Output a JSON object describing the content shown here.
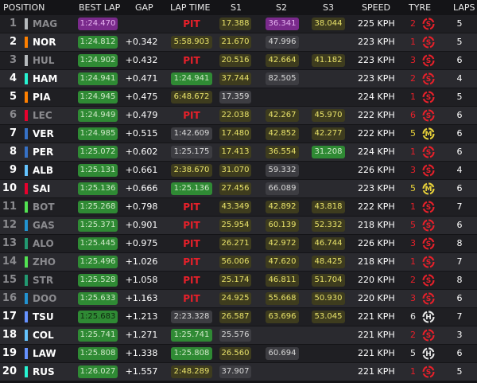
{
  "header": {
    "position": "POSITION",
    "best_lap": "BEST LAP",
    "gap": "GAP",
    "lap_time": "LAP TIME",
    "s1": "S1",
    "s2": "S2",
    "s3": "S3",
    "speed": "SPEED",
    "tyre": "TYRE",
    "laps": "LAPS"
  },
  "colors": {
    "personal_best": "#2f8a34",
    "overall_best": "#7a2a8c",
    "sector_yellow": "#e9e36a",
    "pit_red": "#e8202a",
    "soft": "#e8202a",
    "medium": "#e9d23a",
    "hard": "#e8e8e8"
  },
  "rows": [
    {
      "pos": "1",
      "code": "MAG",
      "team": "#b6babd",
      "out": true,
      "best": "1:24.470",
      "best_style": "purple",
      "gap": "",
      "lt": "PIT",
      "lt_style": "pit",
      "s1": "17.388",
      "s1_style": "yellow",
      "s2": "36.341",
      "s2_style": "purple",
      "s3": "38.044",
      "s3_style": "yellow",
      "speed": "225 KPH",
      "tyre_age": "2",
      "tyre": "S",
      "laps": "5"
    },
    {
      "pos": "2",
      "code": "NOR",
      "team": "#ff8000",
      "out": false,
      "best": "1:24.812",
      "best_style": "green",
      "gap": "+0.342",
      "lt": "5:58.903",
      "lt_style": "yellow",
      "s1": "21.670",
      "s1_style": "yellow",
      "s2": "47.996",
      "s2_style": "white",
      "s3": "",
      "s3_style": "none",
      "speed": "223 KPH",
      "tyre_age": "1",
      "tyre": "S",
      "laps": "5"
    },
    {
      "pos": "3",
      "code": "HUL",
      "team": "#b6babd",
      "out": true,
      "best": "1:24.902",
      "best_style": "green",
      "gap": "+0.432",
      "lt": "PIT",
      "lt_style": "pit",
      "s1": "20.516",
      "s1_style": "yellow",
      "s2": "42.664",
      "s2_style": "yellow",
      "s3": "41.182",
      "s3_style": "yellow",
      "speed": "223 KPH",
      "tyre_age": "3",
      "tyre": "S",
      "laps": "6"
    },
    {
      "pos": "4",
      "code": "HAM",
      "team": "#27f4d2",
      "out": false,
      "best": "1:24.941",
      "best_style": "green",
      "gap": "+0.471",
      "lt": "1:24.941",
      "lt_style": "green",
      "s1": "37.744",
      "s1_style": "yellow",
      "s2": "82.505",
      "s2_style": "white",
      "s3": "",
      "s3_style": "none",
      "speed": "223 KPH",
      "tyre_age": "2",
      "tyre": "S",
      "laps": "4"
    },
    {
      "pos": "5",
      "code": "PIA",
      "team": "#ff8000",
      "out": false,
      "best": "1:24.945",
      "best_style": "green",
      "gap": "+0.475",
      "lt": "6:48.672",
      "lt_style": "yellow",
      "s1": "17.359",
      "s1_style": "white",
      "s2": "",
      "s2_style": "none",
      "s3": "",
      "s3_style": "none",
      "speed": "224 KPH",
      "tyre_age": "1",
      "tyre": "S",
      "laps": "5"
    },
    {
      "pos": "6",
      "code": "LEC",
      "team": "#e8002d",
      "out": true,
      "best": "1:24.949",
      "best_style": "green",
      "gap": "+0.479",
      "lt": "PIT",
      "lt_style": "pit",
      "s1": "22.038",
      "s1_style": "yellow",
      "s2": "42.267",
      "s2_style": "yellow",
      "s3": "45.970",
      "s3_style": "yellow",
      "speed": "222 KPH",
      "tyre_age": "6",
      "tyre": "S",
      "laps": "6"
    },
    {
      "pos": "7",
      "code": "VER",
      "team": "#3671c6",
      "out": false,
      "best": "1:24.985",
      "best_style": "green",
      "gap": "+0.515",
      "lt": "1:42.609",
      "lt_style": "white",
      "s1": "17.480",
      "s1_style": "yellow",
      "s2": "42.852",
      "s2_style": "yellow",
      "s3": "42.277",
      "s3_style": "yellow",
      "speed": "222 KPH",
      "tyre_age": "5",
      "tyre": "M",
      "laps": "6"
    },
    {
      "pos": "8",
      "code": "PER",
      "team": "#3671c6",
      "out": false,
      "best": "1:25.072",
      "best_style": "green",
      "gap": "+0.602",
      "lt": "1:25.175",
      "lt_style": "white",
      "s1": "17.413",
      "s1_style": "yellow",
      "s2": "36.554",
      "s2_style": "yellow",
      "s3": "31.208",
      "s3_style": "green",
      "speed": "224 KPH",
      "tyre_age": "1",
      "tyre": "S",
      "laps": "6"
    },
    {
      "pos": "9",
      "code": "ALB",
      "team": "#64c4ff",
      "out": false,
      "best": "1:25.131",
      "best_style": "green",
      "gap": "+0.661",
      "lt": "2:38.670",
      "lt_style": "yellow",
      "s1": "31.070",
      "s1_style": "yellow",
      "s2": "59.332",
      "s2_style": "white",
      "s3": "",
      "s3_style": "none",
      "speed": "226 KPH",
      "tyre_age": "3",
      "tyre": "S",
      "laps": "4"
    },
    {
      "pos": "10",
      "code": "SAI",
      "team": "#e8002d",
      "out": false,
      "best": "1:25.136",
      "best_style": "green",
      "gap": "+0.666",
      "lt": "1:25.136",
      "lt_style": "green",
      "s1": "27.456",
      "s1_style": "yellow",
      "s2": "66.089",
      "s2_style": "white",
      "s3": "",
      "s3_style": "none",
      "speed": "223 KPH",
      "tyre_age": "5",
      "tyre": "M",
      "laps": "6"
    },
    {
      "pos": "11",
      "code": "BOT",
      "team": "#52e252",
      "out": true,
      "best": "1:25.268",
      "best_style": "green",
      "gap": "+0.798",
      "lt": "PIT",
      "lt_style": "pit",
      "s1": "43.349",
      "s1_style": "yellow",
      "s2": "42.892",
      "s2_style": "yellow",
      "s3": "43.818",
      "s3_style": "yellow",
      "speed": "222 KPH",
      "tyre_age": "1",
      "tyre": "S",
      "laps": "7"
    },
    {
      "pos": "12",
      "code": "GAS",
      "team": "#2293d1",
      "out": true,
      "best": "1:25.371",
      "best_style": "green",
      "gap": "+0.901",
      "lt": "PIT",
      "lt_style": "pit",
      "s1": "25.954",
      "s1_style": "yellow",
      "s2": "60.139",
      "s2_style": "yellow",
      "s3": "52.332",
      "s3_style": "yellow",
      "speed": "218 KPH",
      "tyre_age": "5",
      "tyre": "S",
      "laps": "6"
    },
    {
      "pos": "13",
      "code": "ALO",
      "team": "#229971",
      "out": true,
      "best": "1:25.445",
      "best_style": "green",
      "gap": "+0.975",
      "lt": "PIT",
      "lt_style": "pit",
      "s1": "26.271",
      "s1_style": "yellow",
      "s2": "42.972",
      "s2_style": "yellow",
      "s3": "46.744",
      "s3_style": "yellow",
      "speed": "226 KPH",
      "tyre_age": "3",
      "tyre": "S",
      "laps": "8"
    },
    {
      "pos": "14",
      "code": "ZHO",
      "team": "#52e252",
      "out": true,
      "best": "1:25.496",
      "best_style": "green",
      "gap": "+1.026",
      "lt": "PIT",
      "lt_style": "pit",
      "s1": "56.006",
      "s1_style": "yellow",
      "s2": "47.620",
      "s2_style": "yellow",
      "s3": "48.425",
      "s3_style": "yellow",
      "speed": "218 KPH",
      "tyre_age": "1",
      "tyre": "S",
      "laps": "7"
    },
    {
      "pos": "15",
      "code": "STR",
      "team": "#229971",
      "out": true,
      "best": "1:25.528",
      "best_style": "green",
      "gap": "+1.058",
      "lt": "PIT",
      "lt_style": "pit",
      "s1": "25.174",
      "s1_style": "yellow",
      "s2": "46.811",
      "s2_style": "yellow",
      "s3": "51.704",
      "s3_style": "yellow",
      "speed": "220 KPH",
      "tyre_age": "2",
      "tyre": "S",
      "laps": "8"
    },
    {
      "pos": "16",
      "code": "DOO",
      "team": "#2293d1",
      "out": true,
      "best": "1:25.633",
      "best_style": "green",
      "gap": "+1.163",
      "lt": "PIT",
      "lt_style": "pit",
      "s1": "24.925",
      "s1_style": "yellow",
      "s2": "55.668",
      "s2_style": "yellow",
      "s3": "50.930",
      "s3_style": "yellow",
      "speed": "220 KPH",
      "tyre_age": "3",
      "tyre": "S",
      "laps": "6"
    },
    {
      "pos": "17",
      "code": "TSU",
      "team": "#6692ff",
      "out": false,
      "best": "1:25.683",
      "best_style": "gblack",
      "gap": "+1.213",
      "lt": "2:23.328",
      "lt_style": "white",
      "s1": "26.587",
      "s1_style": "yellow",
      "s2": "63.696",
      "s2_style": "yellow",
      "s3": "53.045",
      "s3_style": "yellow",
      "speed": "221 KPH",
      "tyre_age": "6",
      "tyre": "H",
      "laps": "7"
    },
    {
      "pos": "18",
      "code": "COL",
      "team": "#64c4ff",
      "out": false,
      "best": "1:25.741",
      "best_style": "green",
      "gap": "+1.271",
      "lt": "1:25.741",
      "lt_style": "green",
      "s1": "25.576",
      "s1_style": "white",
      "s2": "",
      "s2_style": "none",
      "s3": "",
      "s3_style": "none",
      "speed": "221 KPH",
      "tyre_age": "2",
      "tyre": "S",
      "laps": "3"
    },
    {
      "pos": "19",
      "code": "LAW",
      "team": "#6692ff",
      "out": false,
      "best": "1:25.808",
      "best_style": "green",
      "gap": "+1.338",
      "lt": "1:25.808",
      "lt_style": "green",
      "s1": "26.560",
      "s1_style": "yellow",
      "s2": "60.694",
      "s2_style": "white",
      "s3": "",
      "s3_style": "none",
      "speed": "221 KPH",
      "tyre_age": "5",
      "tyre": "H",
      "laps": "6"
    },
    {
      "pos": "20",
      "code": "RUS",
      "team": "#27f4d2",
      "out": false,
      "best": "1:26.027",
      "best_style": "green",
      "gap": "+1.557",
      "lt": "2:48.289",
      "lt_style": "yellow",
      "s1": "37.907",
      "s1_style": "white",
      "s2": "",
      "s2_style": "none",
      "s3": "",
      "s3_style": "none",
      "speed": "221 KPH",
      "tyre_age": "1",
      "tyre": "S",
      "laps": "5"
    }
  ]
}
